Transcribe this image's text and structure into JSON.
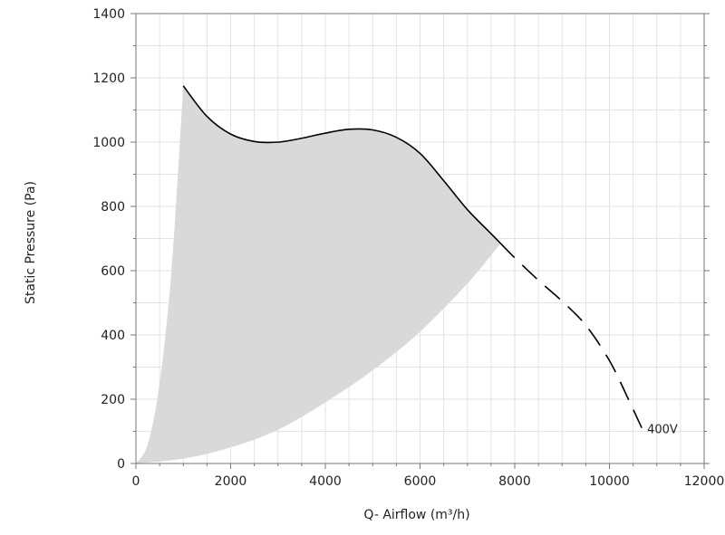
{
  "chart_data": {
    "type": "area",
    "xlabel": "Q- Airflow (m³/h)",
    "ylabel": "Static Pressure (Pa)",
    "xlim": [
      0,
      12000
    ],
    "ylim": [
      0,
      1400
    ],
    "x_major_ticks": [
      0,
      2000,
      4000,
      6000,
      8000,
      10000,
      12000
    ],
    "y_major_ticks": [
      0,
      200,
      400,
      600,
      800,
      1000,
      1200,
      1400
    ],
    "x_minor_step": 500,
    "y_minor_step": 100,
    "grid": true,
    "colors": {
      "region_fill": "#d9d9d9",
      "curve": "#000000",
      "grid": "#e3e3e3",
      "axis": "#777777"
    },
    "operating_region": {
      "upper_curve": [
        {
          "x": 1000,
          "y": 1175
        },
        {
          "x": 1500,
          "y": 1080
        },
        {
          "x": 2000,
          "y": 1025
        },
        {
          "x": 2500,
          "y": 1002
        },
        {
          "x": 3000,
          "y": 1000
        },
        {
          "x": 3500,
          "y": 1012
        },
        {
          "x": 4000,
          "y": 1028
        },
        {
          "x": 4500,
          "y": 1040
        },
        {
          "x": 5000,
          "y": 1038
        },
        {
          "x": 5500,
          "y": 1015
        },
        {
          "x": 6000,
          "y": 965
        },
        {
          "x": 6500,
          "y": 880
        },
        {
          "x": 7000,
          "y": 790
        },
        {
          "x": 7500,
          "y": 715
        },
        {
          "x": 7700,
          "y": 685
        }
      ],
      "lower_curve": [
        {
          "x": 0,
          "y": 0
        },
        {
          "x": 1000,
          "y": 15
        },
        {
          "x": 2000,
          "y": 50
        },
        {
          "x": 3000,
          "y": 105
        },
        {
          "x": 4000,
          "y": 190
        },
        {
          "x": 5000,
          "y": 290
        },
        {
          "x": 6000,
          "y": 410
        },
        {
          "x": 7000,
          "y": 560
        },
        {
          "x": 7700,
          "y": 685
        }
      ],
      "left_boundary": [
        {
          "x": 0,
          "y": 0
        },
        {
          "x": 250,
          "y": 60
        },
        {
          "x": 500,
          "y": 250
        },
        {
          "x": 750,
          "y": 600
        },
        {
          "x": 1000,
          "y": 1175
        }
      ]
    },
    "series": [
      {
        "name": "400V",
        "style": "dashed",
        "points": [
          {
            "x": 7700,
            "y": 685
          },
          {
            "x": 8000,
            "y": 640
          },
          {
            "x": 8500,
            "y": 570
          },
          {
            "x": 9000,
            "y": 505
          },
          {
            "x": 9500,
            "y": 430
          },
          {
            "x": 10000,
            "y": 320
          },
          {
            "x": 10400,
            "y": 200
          },
          {
            "x": 10700,
            "y": 105
          }
        ]
      }
    ]
  }
}
